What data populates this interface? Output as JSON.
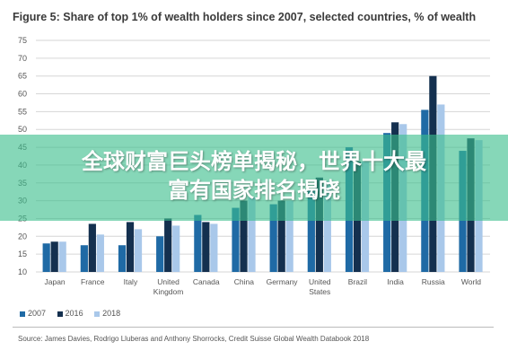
{
  "figure_title": "Figure 5: Share of top 1% of wealth holders since 2007, selected countries, % of wealth",
  "banner": {
    "line1": "全球财富巨头榜单揭秘，世界十大最",
    "line2": "富有国家排名揭晓"
  },
  "source": "Source: James Davies, Rodrigo Lluberas and Anthony Shorrocks, Credit Suisse Global Wealth Databook 2018",
  "chart_data": {
    "type": "bar",
    "categories": [
      "Japan",
      "France",
      "Italy",
      "United Kingdom",
      "Canada",
      "China",
      "Germany",
      "United States",
      "Brazil",
      "India",
      "Russia",
      "World"
    ],
    "category_lines": [
      [
        "Japan"
      ],
      [
        "France"
      ],
      [
        "Italy"
      ],
      [
        "United",
        "Kingdom"
      ],
      [
        "Canada"
      ],
      [
        "China"
      ],
      [
        "Germany"
      ],
      [
        "United",
        "States"
      ],
      [
        "Brazil"
      ],
      [
        "India"
      ],
      [
        "Russia"
      ],
      [
        "World"
      ]
    ],
    "series": [
      {
        "name": "2007",
        "color": "#1f6aa5",
        "values": [
          18,
          17.5,
          17.5,
          20,
          26,
          28,
          29,
          33,
          45,
          49,
          55.5,
          44
        ]
      },
      {
        "name": "2016",
        "color": "#14304f",
        "values": [
          18.5,
          23.5,
          24,
          25,
          24,
          30,
          30,
          36.5,
          41,
          52,
          65,
          47.5
        ]
      },
      {
        "name": "2018",
        "color": "#a9c8ea",
        "values": [
          18.5,
          20.5,
          22,
          23,
          23.5,
          31,
          30,
          35.5,
          41,
          51.5,
          57,
          47
        ]
      }
    ],
    "yticks": [
      10,
      15,
      20,
      25,
      30,
      35,
      40,
      45,
      50,
      55,
      60,
      65,
      70,
      75
    ],
    "ylim": [
      10,
      75
    ],
    "grid": true,
    "legend_position": "bottom-left"
  }
}
